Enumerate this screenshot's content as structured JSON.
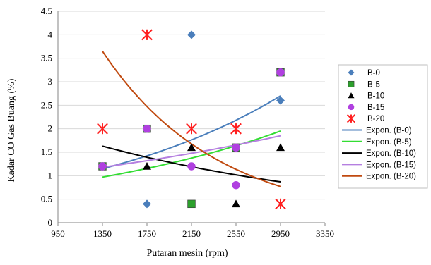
{
  "chart_data": {
    "type": "scatter",
    "title": "",
    "xlabel": "Putaran mesin (rpm)",
    "ylabel": "Kadar CO Gas Buang (%)",
    "xlim": [
      950,
      3350
    ],
    "ylim": [
      0,
      4.5
    ],
    "x_ticks": [
      "950",
      "1350",
      "1750",
      "2150",
      "2550",
      "2950",
      "3350"
    ],
    "y_ticks": [
      "0",
      "0.5",
      "1",
      "1.5",
      "2",
      "2.5",
      "3",
      "3.5",
      "4",
      "4.5"
    ],
    "grid": "horizontal",
    "legend_position": "right",
    "series": [
      {
        "name": "B-0",
        "marker": "diamond",
        "color": "#4a7ebb",
        "points": [
          [
            1350,
            1.2
          ],
          [
            1750,
            0.4
          ],
          [
            2150,
            4.0
          ],
          [
            2950,
            2.6
          ]
        ]
      },
      {
        "name": "B-5",
        "marker": "square",
        "color": "#2ca02c",
        "points": [
          [
            1350,
            1.2
          ],
          [
            1750,
            2.0
          ],
          [
            2150,
            0.4
          ],
          [
            2550,
            1.6
          ],
          [
            2950,
            3.2
          ]
        ]
      },
      {
        "name": "B-10",
        "marker": "triangle",
        "color": "#000000",
        "points": [
          [
            1750,
            1.2
          ],
          [
            2150,
            1.6
          ],
          [
            2550,
            0.4
          ],
          [
            2950,
            1.6
          ]
        ]
      },
      {
        "name": "B-15",
        "marker": "circle",
        "color": "#b040e0",
        "points": [
          [
            1350,
            1.2
          ],
          [
            1750,
            2.0
          ],
          [
            2150,
            1.2
          ],
          [
            2550,
            0.8
          ],
          [
            2550,
            1.6
          ],
          [
            2950,
            3.2
          ]
        ]
      },
      {
        "name": "B-20",
        "marker": "asterisk",
        "color": "#ff2020",
        "points": [
          [
            1350,
            2.0
          ],
          [
            1750,
            4.0
          ],
          [
            2150,
            2.0
          ],
          [
            2550,
            2.0
          ],
          [
            2950,
            0.4
          ]
        ]
      }
    ],
    "trendlines": [
      {
        "name": "Expon. (B-0)",
        "color": "#4a7ebb",
        "x": [
          1350,
          2950
        ],
        "y": [
          1.15,
          2.7
        ]
      },
      {
        "name": "Expon. (B-5)",
        "color": "#33dd33",
        "x": [
          1350,
          2950
        ],
        "y": [
          0.97,
          1.95
        ]
      },
      {
        "name": "Expon. (B-10)",
        "color": "#000000",
        "x": [
          1350,
          2950
        ],
        "y": [
          1.63,
          0.87
        ]
      },
      {
        "name": "Expon. (B-15)",
        "color": "#b57fe0",
        "x": [
          1350,
          2950
        ],
        "y": [
          1.18,
          1.85
        ]
      },
      {
        "name": "Expon. (B-20)",
        "color": "#c04a10",
        "x": [
          1350,
          2950
        ],
        "y": [
          3.65,
          0.77
        ]
      }
    ]
  }
}
